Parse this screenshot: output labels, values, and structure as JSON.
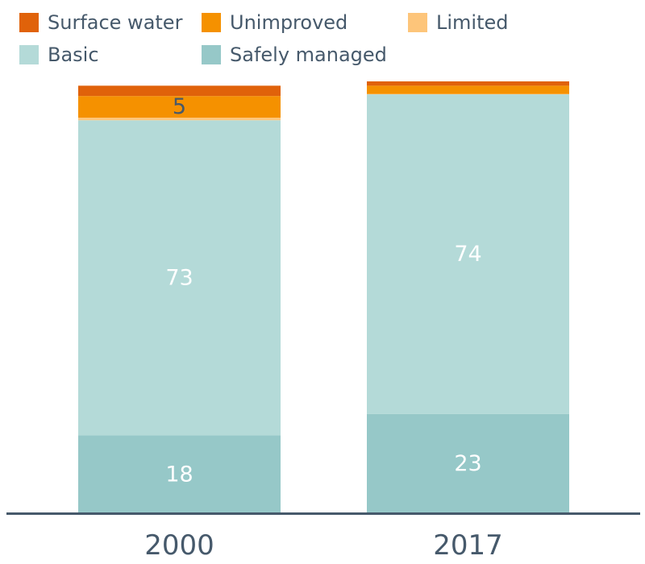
{
  "chart_data": {
    "type": "bar",
    "stacked": true,
    "categories": [
      "2000",
      "2017"
    ],
    "series": [
      {
        "name": "Safely managed",
        "values": [
          18,
          23
        ],
        "color": "#96c8c8",
        "labels": [
          "18",
          "23"
        ]
      },
      {
        "name": "Basic",
        "values": [
          73,
          74
        ],
        "color": "#b4dad8",
        "labels": [
          "73",
          "74"
        ]
      },
      {
        "name": "Limited",
        "values": [
          0.6,
          0.1
        ],
        "color": "#fdc57a",
        "labels": [
          "",
          ""
        ]
      },
      {
        "name": "Unimproved",
        "values": [
          5,
          1.9
        ],
        "color": "#f59100",
        "labels": [
          "5",
          ""
        ]
      },
      {
        "name": "Surface water",
        "values": [
          2.4,
          1
        ],
        "color": "#e0620a",
        "labels": [
          "",
          ""
        ]
      }
    ],
    "legend_order": [
      "Surface water",
      "Unimproved",
      "Limited",
      "Basic",
      "Safely managed"
    ],
    "legend_position": "top-left",
    "ylim": [
      0,
      100
    ],
    "grid": false,
    "title": "",
    "xlabel": "",
    "ylabel": ""
  }
}
